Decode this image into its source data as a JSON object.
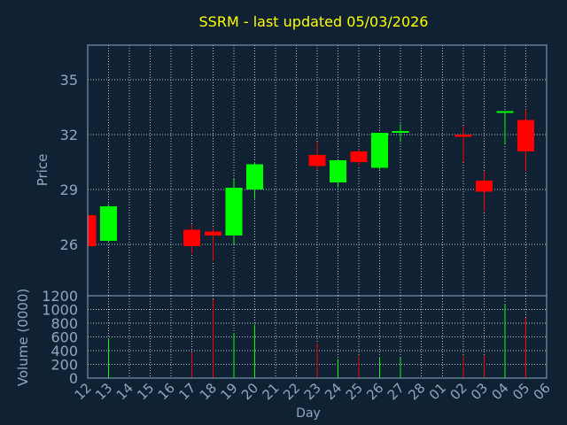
{
  "chart_data": {
    "type": "candlestick",
    "title": "SSRM - last updated 05/03/2026",
    "xlabel": "Day",
    "price_panel": {
      "ylabel": "Price",
      "ylim": [
        23.2,
        36.9
      ],
      "yticks": [
        26,
        29,
        32,
        35
      ]
    },
    "volume_panel": {
      "ylabel": "Volume (0000)",
      "ylim": [
        0,
        1200
      ],
      "yticks": [
        0,
        200,
        400,
        600,
        800,
        1000,
        1200
      ]
    },
    "x_labels": [
      "12",
      "13",
      "14",
      "15",
      "16",
      "17",
      "18",
      "19",
      "20",
      "21",
      "22",
      "23",
      "24",
      "25",
      "26",
      "27",
      "28",
      "01",
      "02",
      "03",
      "04",
      "05",
      "06"
    ],
    "grid": true,
    "colors": {
      "background": "#0f2133",
      "plot_background": "#0f2133",
      "frame": "#8ea8c0",
      "grid": "#b7c6d3",
      "title": "#ffff00",
      "axis_text": "#8ea8c0",
      "up": "#00ff00",
      "down": "#ff0000"
    },
    "candles": [
      {
        "x": "12",
        "open": 27.6,
        "high": 27.7,
        "low": 25.8,
        "close": 25.9
      },
      {
        "x": "13",
        "open": 26.2,
        "high": 28.2,
        "low": 26.1,
        "close": 28.1
      },
      {
        "x": "17",
        "open": 26.8,
        "high": 27.1,
        "low": 25.5,
        "close": 25.9
      },
      {
        "x": "18",
        "open": 26.7,
        "high": 26.9,
        "low": 25.1,
        "close": 26.5
      },
      {
        "x": "19",
        "open": 26.5,
        "high": 29.6,
        "low": 26.0,
        "close": 29.1
      },
      {
        "x": "20",
        "open": 29.0,
        "high": 30.5,
        "low": 28.5,
        "close": 30.4
      },
      {
        "x": "23",
        "open": 30.9,
        "high": 31.6,
        "low": 30.1,
        "close": 30.3
      },
      {
        "x": "24",
        "open": 29.4,
        "high": 30.6,
        "low": 29.1,
        "close": 30.6
      },
      {
        "x": "25",
        "open": 31.1,
        "high": 31.2,
        "low": 30.3,
        "close": 30.5
      },
      {
        "x": "26",
        "open": 30.2,
        "high": 32.1,
        "low": 30.1,
        "close": 32.1
      },
      {
        "x": "27",
        "open": 32.1,
        "high": 32.6,
        "low": 31.6,
        "close": 32.2
      },
      {
        "x": "02",
        "open": 32.0,
        "high": 32.5,
        "low": 30.5,
        "close": 31.9
      },
      {
        "x": "03",
        "open": 29.5,
        "high": 30.0,
        "low": 27.8,
        "close": 28.9
      },
      {
        "x": "04",
        "open": 33.2,
        "high": 33.3,
        "low": 31.5,
        "close": 33.3
      },
      {
        "x": "05",
        "open": 32.8,
        "high": 33.4,
        "low": 30.0,
        "close": 31.1
      }
    ],
    "volume": [
      {
        "x": "13",
        "value": 580,
        "dir": "up"
      },
      {
        "x": "17",
        "value": 380,
        "dir": "down"
      },
      {
        "x": "18",
        "value": 1150,
        "dir": "down"
      },
      {
        "x": "19",
        "value": 660,
        "dir": "up"
      },
      {
        "x": "20",
        "value": 780,
        "dir": "up"
      },
      {
        "x": "23",
        "value": 510,
        "dir": "down"
      },
      {
        "x": "24",
        "value": 280,
        "dir": "up"
      },
      {
        "x": "25",
        "value": 320,
        "dir": "down"
      },
      {
        "x": "26",
        "value": 310,
        "dir": "up"
      },
      {
        "x": "27",
        "value": 300,
        "dir": "up"
      },
      {
        "x": "02",
        "value": 320,
        "dir": "down"
      },
      {
        "x": "03",
        "value": 330,
        "dir": "down"
      },
      {
        "x": "04",
        "value": 1080,
        "dir": "up"
      },
      {
        "x": "05",
        "value": 880,
        "dir": "down"
      }
    ]
  }
}
